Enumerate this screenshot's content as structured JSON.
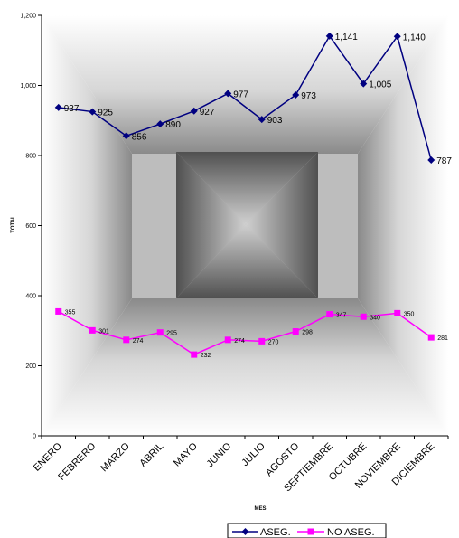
{
  "chart_data": {
    "type": "line",
    "xlabel": "MES",
    "ylabel": "TOTAL",
    "ylim": [
      0,
      1200
    ],
    "yticks": [
      0,
      200,
      400,
      600,
      800,
      1000,
      1200
    ],
    "ytick_labels": [
      "0",
      "200",
      "400",
      "600",
      "800",
      "1,000",
      "1,200"
    ],
    "categories": [
      "ENERO",
      "FEBRERO",
      "MARZO",
      "ABRIL",
      "MAYO",
      "JUNIO",
      "JULIO",
      "AGOSTO",
      "SEPTIEMBRE",
      "OCTUBRE",
      "NOVIEMBRE",
      "DICIEMBRE"
    ],
    "grid": false,
    "legend_position": "bottom-right",
    "series": [
      {
        "name": "ASEG.",
        "color": "#000080",
        "marker": "diamond",
        "values": [
          937,
          925,
          856,
          890,
          927,
          977,
          903,
          973,
          1141,
          1005,
          1140,
          787
        ],
        "labels": [
          "937",
          "925",
          "856",
          "890",
          "927",
          "977",
          "903",
          "973",
          "1,141",
          "1,005",
          "1,140",
          "787"
        ]
      },
      {
        "name": "NO ASEG.",
        "color": "#ff00ff",
        "marker": "square",
        "values": [
          355,
          301,
          274,
          295,
          232,
          274,
          270,
          298,
          347,
          340,
          350,
          281
        ],
        "labels": [
          "355",
          "301",
          "274",
          "295",
          "232",
          "274",
          "270",
          "298",
          "347",
          "340",
          "350",
          "281"
        ]
      }
    ]
  }
}
